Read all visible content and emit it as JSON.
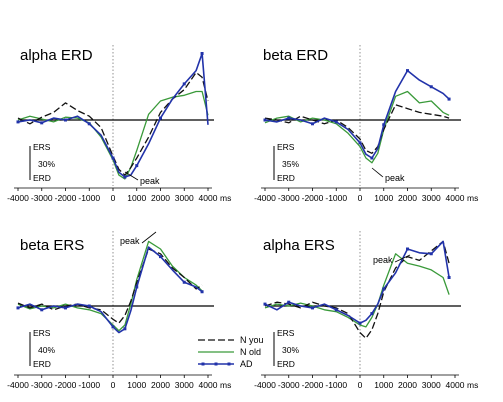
{
  "colors": {
    "N you": "#111111",
    "N old": "#3a9a3a",
    "AD": "#2233aa"
  },
  "legend": [
    "N you",
    "N old",
    "AD"
  ],
  "axis_unit": "ms",
  "x_ticks": [
    "-4000",
    "-3000",
    "-2000",
    "-1000",
    "0",
    "1000",
    "2000",
    "3000",
    "4000"
  ],
  "chart_data": [
    {
      "type": "line",
      "title": "alpha ERD",
      "scale_bar": {
        "top": "ERS",
        "value": "30%",
        "bottom": "ERD"
      },
      "annotation": "peak",
      "xlim": [
        -4000,
        4000
      ],
      "x": [
        -4000,
        -3500,
        -3000,
        -2500,
        -2000,
        -1500,
        -1000,
        -500,
        0,
        250,
        500,
        750,
        1000,
        1500,
        2000,
        2500,
        3000,
        3500,
        3750,
        4000
      ],
      "series": [
        {
          "name": "N you",
          "values": [
            2,
            -4,
            3,
            8,
            18,
            10,
            4,
            -8,
            -38,
            -52,
            -58,
            -50,
            -40,
            -18,
            8,
            22,
            32,
            50,
            45,
            20
          ]
        },
        {
          "name": "N old",
          "values": [
            0,
            4,
            1,
            -2,
            3,
            2,
            -3,
            -18,
            -42,
            -58,
            -62,
            -50,
            -32,
            6,
            20,
            24,
            26,
            30,
            30,
            5
          ]
        },
        {
          "name": "AD",
          "values": [
            -2,
            0,
            -3,
            2,
            0,
            4,
            -4,
            -16,
            -40,
            -55,
            -60,
            -58,
            -48,
            -25,
            2,
            22,
            38,
            52,
            70,
            -5
          ]
        }
      ]
    },
    {
      "type": "line",
      "title": "beta ERD",
      "scale_bar": {
        "top": "ERS",
        "value": "35%",
        "bottom": "ERD"
      },
      "annotation": "peak",
      "xlim": [
        -4000,
        4000
      ],
      "x": [
        -4000,
        -3500,
        -3000,
        -2500,
        -2000,
        -1500,
        -1000,
        -500,
        0,
        250,
        500,
        750,
        1000,
        1500,
        2000,
        2500,
        3000,
        3500,
        3750
      ],
      "series": [
        {
          "name": "N you",
          "values": [
            2,
            0,
            -3,
            4,
            0,
            -4,
            0,
            -8,
            -20,
            -32,
            -35,
            -28,
            -10,
            16,
            12,
            8,
            6,
            4,
            2
          ]
        },
        {
          "name": "N old",
          "values": [
            -3,
            2,
            4,
            -2,
            2,
            0,
            -4,
            -14,
            -28,
            -40,
            -45,
            -35,
            -10,
            25,
            30,
            18,
            20,
            8,
            5
          ]
        },
        {
          "name": "AD",
          "values": [
            0,
            -2,
            2,
            0,
            -4,
            2,
            -2,
            -10,
            -24,
            -36,
            -40,
            -30,
            -5,
            30,
            52,
            42,
            35,
            28,
            22
          ]
        }
      ]
    },
    {
      "type": "line",
      "title": "beta ERS",
      "scale_bar": {
        "top": "ERS",
        "value": "40%",
        "bottom": "ERD"
      },
      "annotation": "peak",
      "xlim": [
        -4000,
        4000
      ],
      "x": [
        -4000,
        -3500,
        -3000,
        -2500,
        -2000,
        -1500,
        -1000,
        -500,
        0,
        250,
        500,
        750,
        1000,
        1500,
        2000,
        2500,
        3000,
        3500,
        3750
      ],
      "series": [
        {
          "name": "N you",
          "values": [
            3,
            -2,
            2,
            -4,
            0,
            2,
            -2,
            -4,
            -14,
            -18,
            -10,
            5,
            25,
            60,
            55,
            40,
            30,
            18,
            22
          ]
        },
        {
          "name": "N old",
          "values": [
            2,
            -3,
            0,
            -2,
            2,
            -2,
            -4,
            -8,
            -20,
            -26,
            -20,
            2,
            28,
            68,
            60,
            42,
            30,
            22,
            16
          ]
        },
        {
          "name": "AD",
          "values": [
            -2,
            2,
            -4,
            0,
            -2,
            2,
            0,
            -6,
            -22,
            -28,
            -24,
            -5,
            20,
            62,
            52,
            38,
            25,
            20,
            15
          ]
        }
      ]
    },
    {
      "type": "line",
      "title": "alpha ERS",
      "scale_bar": {
        "top": "ERS",
        "value": "30%",
        "bottom": "ERD"
      },
      "annotation": "peak",
      "xlim": [
        -4000,
        4000
      ],
      "x": [
        -4000,
        -3500,
        -3000,
        -2500,
        -2000,
        -1500,
        -1000,
        -500,
        0,
        250,
        500,
        750,
        1000,
        1500,
        2000,
        2500,
        3000,
        3500,
        3750
      ],
      "series": [
        {
          "name": "N you",
          "values": [
            0,
            4,
            2,
            -2,
            4,
            0,
            -2,
            -8,
            -28,
            -34,
            -25,
            -8,
            15,
            40,
            52,
            48,
            58,
            68,
            45
          ]
        },
        {
          "name": "N old",
          "values": [
            -2,
            2,
            0,
            3,
            0,
            -4,
            -6,
            -12,
            -20,
            -22,
            -12,
            2,
            22,
            55,
            45,
            42,
            38,
            30,
            12
          ]
        },
        {
          "name": "AD",
          "values": [
            2,
            -4,
            4,
            0,
            -2,
            2,
            -4,
            -10,
            -18,
            -15,
            -8,
            2,
            18,
            35,
            60,
            56,
            55,
            68,
            30
          ]
        }
      ]
    }
  ]
}
